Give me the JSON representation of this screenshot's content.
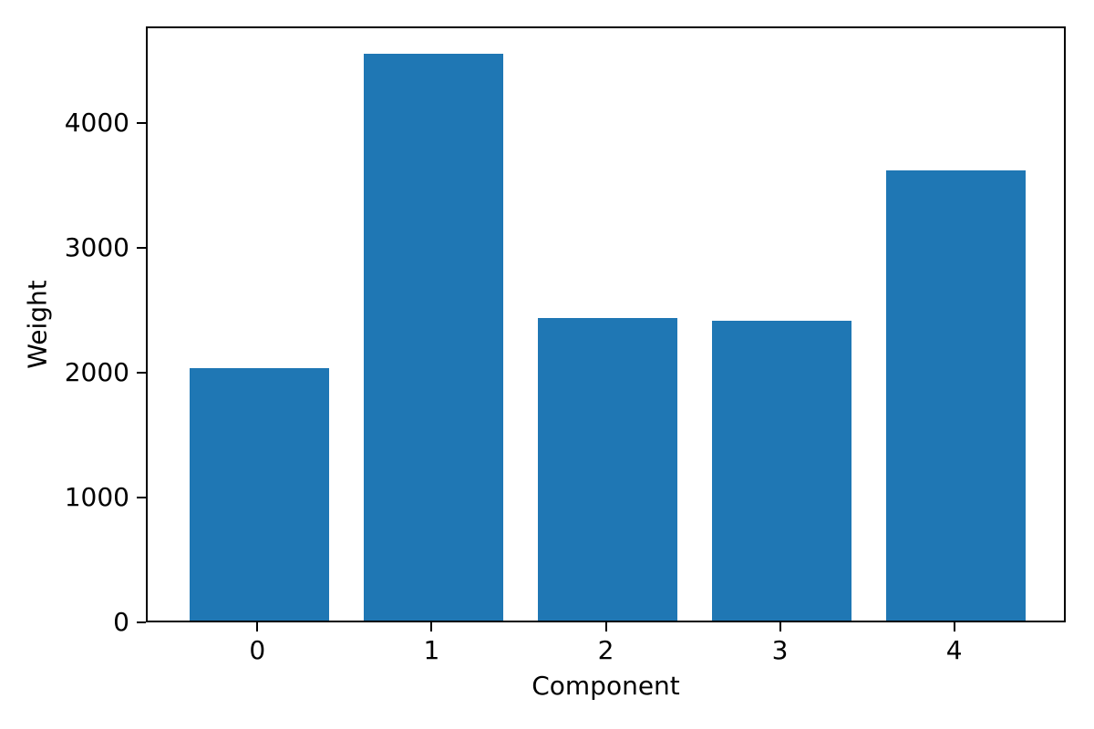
{
  "figure": {
    "background": "#ffffff",
    "spine_color": "#000000",
    "bar_color": "#1f77b4"
  },
  "chart_data": {
    "type": "bar",
    "title": "",
    "xlabel": "Component",
    "ylabel": "Weight",
    "categories": [
      "0",
      "1",
      "2",
      "3",
      "4"
    ],
    "values": [
      2020,
      4540,
      2420,
      2400,
      3600
    ],
    "yticks": [
      0,
      1000,
      2000,
      3000,
      4000
    ],
    "ylim": [
      0,
      4770
    ],
    "x_margin": 0.64,
    "bar_width_fraction": 0.8,
    "grid": false,
    "legend": "none"
  }
}
